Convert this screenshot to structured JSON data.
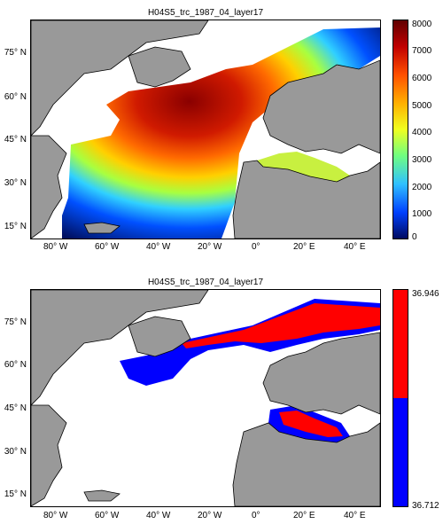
{
  "panels": [
    {
      "title": "H04S5_trc_1987_04_layer17",
      "x_ticks": [
        "80° W",
        "60° W",
        "40° W",
        "20° W",
        "0°",
        "20° E",
        "40° E"
      ],
      "y_ticks": [
        "75° N",
        "60° N",
        "45° N",
        "30° N",
        "15° N"
      ],
      "colorbar": {
        "ticks": [
          "8000",
          "7000",
          "6000",
          "5000",
          "4000",
          "3000",
          "2000",
          "1000",
          "0"
        ]
      }
    },
    {
      "title": "H04S5_trc_1987_04_layer17",
      "x_ticks": [
        "80° W",
        "60° W",
        "40° W",
        "20° W",
        "0°",
        "20° E",
        "40° E"
      ],
      "y_ticks": [
        "75° N",
        "60° N",
        "45° N",
        "30° N",
        "15° N"
      ],
      "colorbar": {
        "max_label": "36.946",
        "min_label": "36.712",
        "colors": [
          "#ff0000",
          "#0000ff"
        ]
      }
    }
  ]
}
